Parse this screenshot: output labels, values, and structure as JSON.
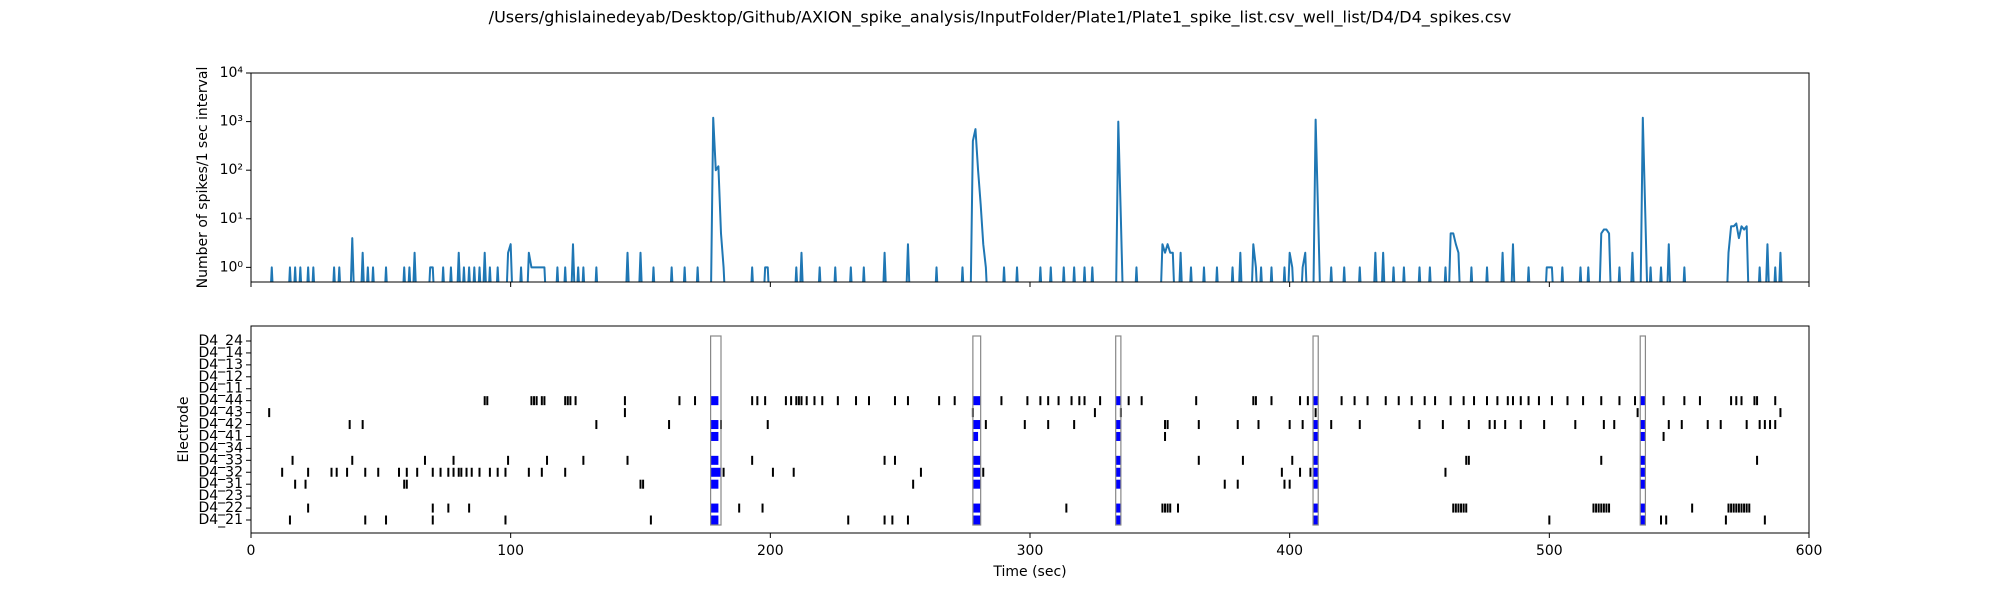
{
  "title": "/Users/ghislainedeyab/Desktop/Github/AXION_spike_analysis/InputFolder/Plate1/Plate1_spike_list.csv_well_list/D4/D4_spikes.csv",
  "chart_data": [
    {
      "type": "line",
      "ylabel": "Number of spikes/1 sec interval",
      "log_scale": true,
      "color": "#1f77b4",
      "xlim": [
        0,
        600
      ],
      "xticks": [
        0,
        100,
        200,
        300,
        400,
        500,
        600
      ],
      "ylim": [
        0.5,
        10000
      ],
      "yticks": [
        {
          "value": 1,
          "label": "10⁰"
        },
        {
          "value": 10,
          "label": "10¹"
        },
        {
          "value": 100,
          "label": "10²"
        },
        {
          "value": 1000,
          "label": "10³"
        },
        {
          "value": 10000,
          "label": "10⁴"
        }
      ],
      "x": [
        0,
        7,
        8,
        9,
        14,
        15,
        16,
        17,
        18,
        19,
        20,
        21,
        22,
        23,
        24,
        25,
        31,
        32,
        33,
        34,
        35,
        38,
        39,
        40,
        42,
        43,
        44,
        45,
        46,
        47,
        48,
        51,
        52,
        53,
        58,
        59,
        60,
        61,
        62,
        63,
        64,
        68,
        69,
        70,
        71,
        73,
        74,
        75,
        76,
        77,
        78,
        79,
        80,
        81,
        82,
        83,
        84,
        85,
        86,
        87,
        88,
        89,
        90,
        91,
        92,
        93,
        94,
        95,
        96,
        98,
        99,
        100,
        101,
        103,
        104,
        105,
        106,
        107,
        108,
        109,
        110,
        111,
        112,
        113,
        114,
        117,
        118,
        119,
        120,
        121,
        122,
        123,
        124,
        125,
        126,
        127,
        128,
        129,
        132,
        133,
        134,
        144,
        145,
        146,
        149,
        150,
        151,
        154,
        155,
        156,
        161,
        162,
        163,
        166,
        167,
        168,
        171,
        172,
        173,
        177,
        178,
        179,
        180,
        181,
        182,
        183,
        192,
        193,
        194,
        197,
        198,
        199,
        200,
        209,
        210,
        211,
        212,
        213,
        218,
        219,
        220,
        224,
        225,
        226,
        230,
        231,
        232,
        235,
        236,
        237,
        243,
        244,
        245,
        252,
        253,
        254,
        263,
        264,
        265,
        273,
        274,
        275,
        277,
        278,
        279,
        280,
        281,
        282,
        283,
        284,
        289,
        290,
        291,
        294,
        295,
        296,
        303,
        304,
        305,
        307,
        308,
        309,
        312,
        313,
        314,
        316,
        317,
        318,
        320,
        321,
        322,
        323,
        324,
        325,
        333,
        334,
        335,
        336,
        340,
        341,
        342,
        350,
        351,
        352,
        353,
        354,
        355,
        356,
        357,
        358,
        359,
        361,
        362,
        363,
        366,
        367,
        368,
        371,
        372,
        373,
        377,
        378,
        379,
        380,
        381,
        382,
        385,
        386,
        387,
        388,
        389,
        390,
        392,
        393,
        394,
        397,
        398,
        399,
        400,
        401,
        402,
        404,
        405,
        406,
        407,
        409,
        410,
        411,
        412,
        415,
        416,
        417,
        420,
        421,
        422,
        426,
        427,
        428,
        432,
        433,
        434,
        435,
        436,
        437,
        439,
        440,
        441,
        443,
        444,
        445,
        449,
        450,
        451,
        453,
        454,
        455,
        459,
        460,
        461,
        462,
        463,
        464,
        465,
        466,
        469,
        470,
        471,
        475,
        476,
        477,
        481,
        482,
        483,
        485,
        486,
        487,
        491,
        492,
        493,
        498,
        499,
        500,
        501,
        502,
        504,
        505,
        506,
        511,
        512,
        513,
        514,
        515,
        516,
        519,
        520,
        521,
        522,
        523,
        524,
        526,
        527,
        528,
        531,
        532,
        533,
        535,
        536,
        537,
        538,
        539,
        540,
        542,
        543,
        544,
        545,
        546,
        547,
        551,
        552,
        553,
        568,
        569,
        570,
        571,
        572,
        573,
        574,
        575,
        576,
        577,
        580,
        581,
        582,
        583,
        584,
        585,
        586,
        587,
        588,
        589,
        590,
        600
      ],
      "values": [
        0,
        0,
        1,
        0,
        0,
        1,
        0,
        1,
        0,
        1,
        0,
        0,
        1,
        0,
        1,
        0,
        0,
        1,
        0,
        1,
        0,
        0,
        4,
        0,
        0,
        2,
        0,
        1,
        0,
        1,
        0,
        0,
        1,
        0,
        0,
        1,
        0,
        1,
        0,
        2,
        0,
        0,
        1,
        1,
        0,
        0,
        1,
        0,
        0,
        1,
        0,
        0,
        2,
        0,
        1,
        0,
        1,
        0,
        1,
        0,
        1,
        0,
        2,
        0,
        1,
        0,
        0,
        1,
        0,
        0,
        2,
        3,
        0,
        0,
        1,
        0,
        0,
        2,
        1,
        1,
        1,
        1,
        1,
        1,
        0,
        0,
        1,
        0,
        0,
        1,
        0,
        0,
        3,
        0,
        1,
        0,
        1,
        0,
        0,
        1,
        0,
        0,
        2,
        0,
        0,
        2,
        0,
        0,
        1,
        0,
        0,
        1,
        0,
        0,
        1,
        0,
        0,
        1,
        0,
        0,
        1200,
        100,
        120,
        5,
        1,
        0,
        0,
        1,
        0,
        0,
        1,
        1,
        0,
        0,
        1,
        0,
        2,
        0,
        0,
        1,
        0,
        0,
        1,
        0,
        0,
        1,
        0,
        0,
        1,
        0,
        0,
        2,
        0,
        0,
        3,
        0,
        0,
        1,
        0,
        0,
        1,
        0,
        0,
        400,
        700,
        100,
        20,
        3,
        1,
        0,
        0,
        1,
        0,
        0,
        1,
        0,
        0,
        1,
        0,
        0,
        1,
        0,
        0,
        1,
        0,
        0,
        1,
        0,
        0,
        1,
        0,
        0,
        1,
        0,
        0,
        1000,
        10,
        0,
        0,
        1,
        0,
        0,
        3,
        2,
        3,
        2,
        2,
        0,
        0,
        2,
        0,
        0,
        1,
        0,
        0,
        1,
        0,
        0,
        1,
        0,
        0,
        1,
        0,
        0,
        2,
        0,
        0,
        3,
        1,
        0,
        1,
        0,
        0,
        1,
        0,
        0,
        1,
        0,
        2,
        1,
        0,
        0,
        1,
        2,
        0,
        0,
        1100,
        10,
        0,
        0,
        1,
        0,
        0,
        1,
        0,
        0,
        1,
        0,
        0,
        2,
        0,
        0,
        2,
        0,
        0,
        1,
        0,
        0,
        1,
        0,
        0,
        1,
        0,
        0,
        1,
        0,
        0,
        1,
        0,
        5,
        5,
        3,
        2,
        0,
        0,
        1,
        0,
        0,
        1,
        0,
        0,
        2,
        0,
        0,
        3,
        0,
        0,
        1,
        0,
        0,
        1,
        1,
        1,
        0,
        0,
        1,
        0,
        0,
        1,
        0,
        0,
        1,
        0,
        0,
        5,
        6,
        6,
        5,
        0,
        0,
        1,
        0,
        0,
        2,
        0,
        0,
        1200,
        10,
        0,
        1,
        0,
        0,
        1,
        0,
        0,
        3,
        0,
        0,
        1,
        0,
        0,
        2,
        7,
        7,
        8,
        4,
        7,
        6,
        7,
        0,
        0,
        1,
        0,
        0,
        3,
        0,
        0,
        1,
        0,
        2,
        0,
        0
      ]
    },
    {
      "type": "raster",
      "xlabel": "Time (sec)",
      "ylabel": "Electrode",
      "xlim": [
        0,
        600
      ],
      "xticks": [
        0,
        100,
        200,
        300,
        400,
        500,
        600
      ],
      "spike_color": "#000000",
      "burst_color": "#0000ff",
      "network_burst_color": "#888888",
      "network_bursts": [
        [
          177,
          181
        ],
        [
          278,
          281
        ],
        [
          333,
          335
        ],
        [
          409,
          411
        ],
        [
          535,
          537
        ]
      ],
      "electrodes": [
        {
          "name": "D4_24",
          "spikes": [],
          "bursts": []
        },
        {
          "name": "D4_14",
          "spikes": [],
          "bursts": []
        },
        {
          "name": "D4_13",
          "spikes": [],
          "bursts": []
        },
        {
          "name": "D4_12",
          "spikes": [],
          "bursts": []
        },
        {
          "name": "D4_11",
          "spikes": [],
          "bursts": []
        },
        {
          "name": "D4_44",
          "spikes": [
            90,
            91,
            108,
            109,
            110,
            112,
            113,
            121,
            122,
            123,
            125,
            144,
            165,
            171,
            193,
            195,
            198,
            206,
            208,
            210,
            211,
            212,
            214,
            217,
            220,
            226,
            233,
            238,
            248,
            253,
            265,
            271,
            289,
            299,
            304,
            307,
            311,
            316,
            319,
            321,
            327,
            338,
            343,
            364,
            386,
            387,
            393,
            404,
            407,
            420,
            425,
            430,
            437,
            442,
            447,
            452,
            456,
            462,
            467,
            471,
            476,
            480,
            484,
            486,
            489,
            492,
            496,
            501,
            507,
            513,
            520,
            527,
            533,
            544,
            552,
            558,
            570,
            572,
            574,
            579,
            580,
            587
          ],
          "bursts": [
            [
              177,
              180
            ],
            [
              278,
              281
            ],
            [
              333,
              335
            ],
            [
              409,
              411
            ],
            [
              535,
              537
            ]
          ]
        },
        {
          "name": "D4_43",
          "spikes": [
            7,
            144,
            278,
            325,
            335,
            410,
            534,
            589
          ],
          "bursts": []
        },
        {
          "name": "D4_42",
          "spikes": [
            38,
            43,
            133,
            161,
            181,
            199,
            283,
            298,
            307,
            317,
            352,
            353,
            365,
            380,
            388,
            400,
            405,
            416,
            427,
            450,
            459,
            469,
            477,
            479,
            483,
            489,
            498,
            510,
            521,
            525,
            546,
            551,
            561,
            566,
            576,
            581,
            583,
            585,
            587
          ],
          "bursts": [
            [
              177,
              180
            ],
            [
              278,
              281
            ],
            [
              333,
              335
            ],
            [
              409,
              411
            ],
            [
              535,
              537
            ]
          ]
        },
        {
          "name": "D4_41",
          "spikes": [
            352,
            544
          ],
          "bursts": [
            [
              177,
              180
            ],
            [
              278,
              280
            ],
            [
              333,
              335
            ],
            [
              409,
              411
            ],
            [
              535,
              537
            ]
          ]
        },
        {
          "name": "D4_34",
          "spikes": [],
          "bursts": []
        },
        {
          "name": "D4_33",
          "spikes": [
            16,
            39,
            67,
            78,
            99,
            114,
            128,
            145,
            193,
            244,
            248,
            365,
            382,
            401,
            468,
            469,
            520,
            580
          ],
          "bursts": [
            [
              177,
              180
            ],
            [
              278,
              281
            ],
            [
              333,
              335
            ],
            [
              409,
              411
            ],
            [
              535,
              537
            ]
          ]
        },
        {
          "name": "D4_32",
          "spikes": [
            12,
            22,
            31,
            33,
            37,
            44,
            49,
            57,
            60,
            64,
            70,
            73,
            76,
            78,
            80,
            81,
            83,
            85,
            88,
            92,
            95,
            98,
            107,
            112,
            121,
            182,
            201,
            209,
            258,
            282,
            397,
            404,
            408,
            460
          ],
          "bursts": [
            [
              177,
              181
            ],
            [
              278,
              281
            ],
            [
              333,
              335
            ],
            [
              409,
              411
            ],
            [
              535,
              537
            ]
          ]
        },
        {
          "name": "D4_31",
          "spikes": [
            17,
            21,
            59,
            60,
            150,
            151,
            255,
            375,
            380,
            398,
            400
          ],
          "bursts": [
            [
              177,
              180
            ],
            [
              278,
              281
            ],
            [
              333,
              335
            ],
            [
              409,
              411
            ],
            [
              535,
              537
            ]
          ]
        },
        {
          "name": "D4_23",
          "spikes": [],
          "bursts": []
        },
        {
          "name": "D4_22",
          "spikes": [
            22,
            70,
            76,
            84,
            188,
            197,
            314,
            351,
            352,
            353,
            354,
            357,
            463,
            464,
            465,
            466,
            467,
            468,
            517,
            518,
            519,
            520,
            521,
            522,
            523,
            555,
            569,
            570,
            571,
            572,
            573,
            574,
            575,
            576,
            577
          ],
          "bursts": [
            [
              177,
              180
            ],
            [
              278,
              281
            ],
            [
              333,
              335
            ],
            [
              409,
              411
            ],
            [
              535,
              537
            ]
          ]
        },
        {
          "name": "D4_21",
          "spikes": [
            15,
            44,
            52,
            70,
            98,
            154,
            230,
            244,
            247,
            253,
            500,
            543,
            545,
            568,
            583
          ],
          "bursts": [
            [
              177,
              180
            ],
            [
              278,
              281
            ],
            [
              333,
              335
            ],
            [
              409,
              411
            ],
            [
              535,
              537
            ]
          ]
        }
      ]
    }
  ]
}
